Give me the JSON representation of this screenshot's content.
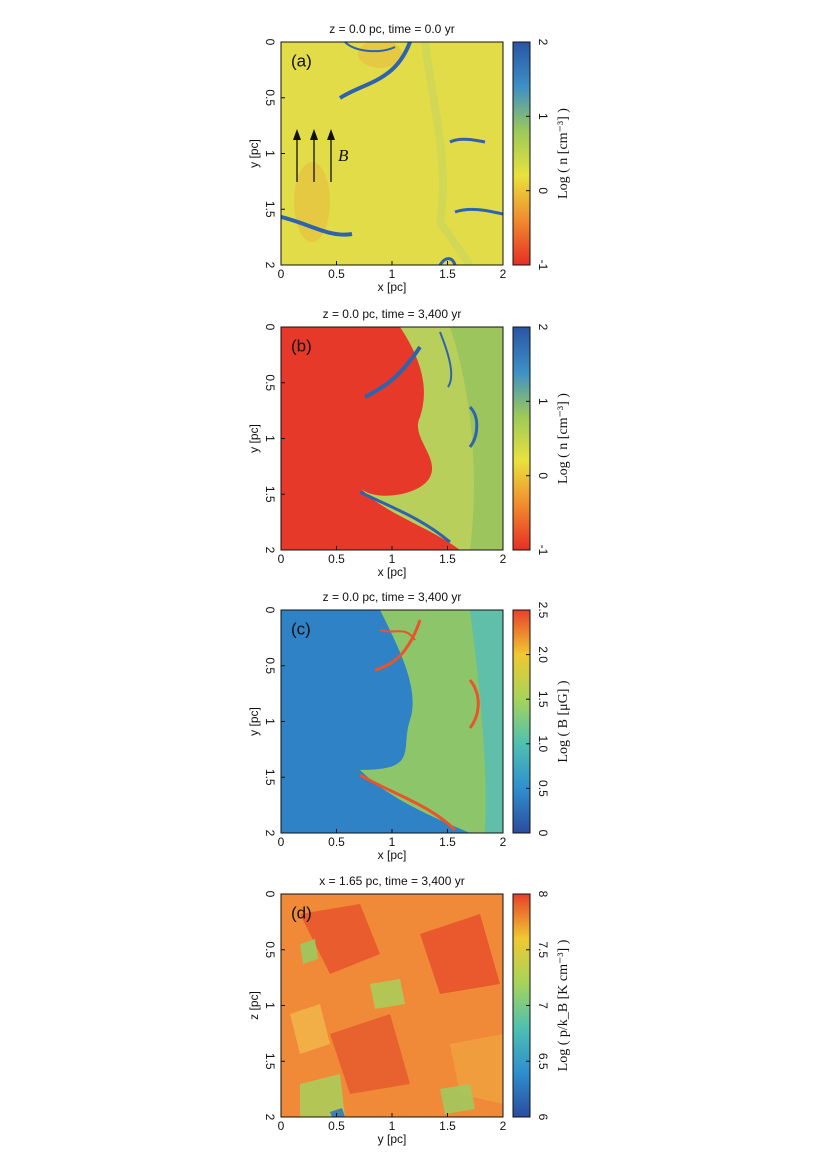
{
  "chart_data": [
    {
      "type": "heatmap",
      "title": "z = 0.0 pc, time = 0.0 yr",
      "panel_label": "(a)",
      "xlabel": "x [pc]",
      "ylabel": "y [pc]",
      "xlim": [
        0,
        2
      ],
      "xticks": [
        0,
        0.5,
        1,
        1.5,
        2
      ],
      "ylim": [
        2,
        0
      ],
      "yticks": [
        0,
        0.5,
        1,
        1.5,
        2
      ],
      "annotation": "B",
      "colorbar": {
        "label": "Log ( n [cm⁻³] )",
        "lim": [
          -1,
          2
        ],
        "ticks": [
          -1,
          0,
          1,
          2
        ],
        "colors": [
          "#e62e25",
          "#f08a2e",
          "#e9e23c",
          "#9cc95a",
          "#3d8fc6",
          "#2a55a5"
        ]
      }
    },
    {
      "type": "heatmap",
      "title": "z = 0.0 pc, time = 3,400 yr",
      "panel_label": "(b)",
      "xlabel": "x [pc]",
      "ylabel": "y [pc]",
      "xlim": [
        0,
        2
      ],
      "xticks": [
        0,
        0.5,
        1,
        1.5,
        2
      ],
      "ylim": [
        2,
        0
      ],
      "yticks": [
        0,
        0.5,
        1,
        1.5,
        2
      ],
      "colorbar": {
        "label": "Log ( n [cm⁻³] )",
        "lim": [
          -1,
          2
        ],
        "ticks": [
          -1,
          0,
          1,
          2
        ],
        "colors": [
          "#e62e25",
          "#f08a2e",
          "#e9e23c",
          "#9cc95a",
          "#3d8fc6",
          "#2a55a5"
        ]
      }
    },
    {
      "type": "heatmap",
      "title": "z = 0.0 pc, time = 3,400 yr",
      "panel_label": "(c)",
      "xlabel": "x [pc]",
      "ylabel": "y [pc]",
      "xlim": [
        0,
        2
      ],
      "xticks": [
        0,
        0.5,
        1,
        1.5,
        2
      ],
      "ylim": [
        2,
        0
      ],
      "yticks": [
        0,
        0.5,
        1,
        1.5,
        2
      ],
      "colorbar": {
        "label": "Log ( B [μG] )",
        "lim": [
          0,
          2.5
        ],
        "ticks": [
          0,
          0.5,
          {
            "value": 1,
            "label": "1.0"
          },
          1.5,
          {
            "value": 2,
            "label": "2.0"
          },
          2.5
        ],
        "colors": [
          "#2b4c9e",
          "#2f8fcf",
          "#4fc0b0",
          "#a6d45a",
          "#f0c832",
          "#e8402a"
        ]
      }
    },
    {
      "type": "heatmap",
      "title": "x = 1.65 pc, time = 3,400 yr",
      "panel_label": "(d)",
      "xlabel": "y [pc]",
      "ylabel": "z [pc]",
      "xlim": [
        0,
        2
      ],
      "xticks": [
        0,
        0.5,
        1,
        1.5,
        2
      ],
      "ylim": [
        2,
        0
      ],
      "yticks": [
        0,
        0.5,
        1,
        1.5,
        2
      ],
      "colorbar": {
        "label": "Log ( p/k_B [K cm⁻³] )",
        "lim": [
          6,
          8
        ],
        "ticks": [
          6,
          6.5,
          7,
          7.5,
          8
        ],
        "colors": [
          "#2b4c9e",
          "#2f8fcf",
          "#4fc0b0",
          "#a6d45a",
          "#f0c832",
          "#e8402a"
        ]
      }
    }
  ]
}
